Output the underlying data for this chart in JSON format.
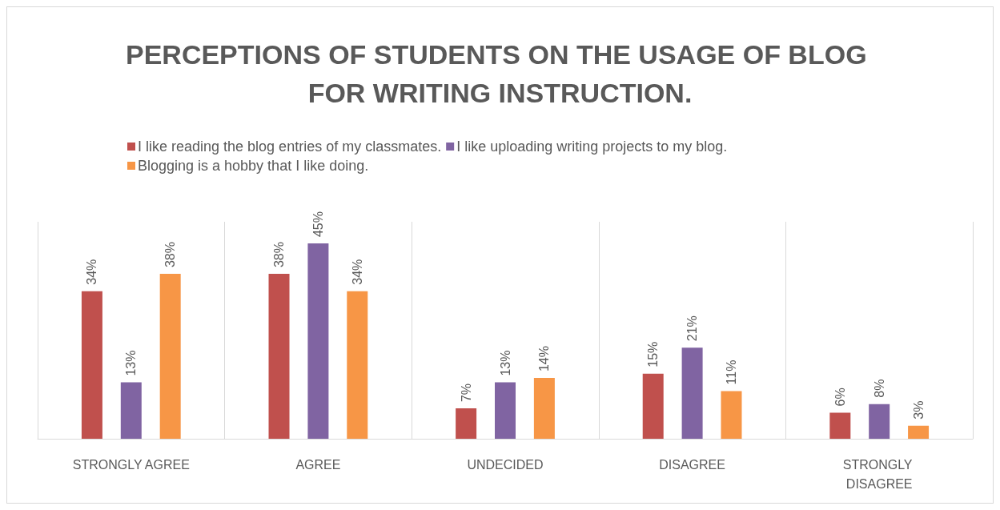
{
  "chart_data": {
    "type": "bar",
    "title": "PERCEPTIONS OF STUDENTS ON THE USAGE OF BLOG FOR WRITING INSTRUCTION.",
    "categories": [
      "STRONGLY AGREE",
      "AGREE",
      "UNDECIDED",
      "DISAGREE",
      "STRONGLY DISAGREE"
    ],
    "series": [
      {
        "name": "I like reading the blog entries of my classmates.",
        "color": "#c0504d",
        "values": [
          34,
          38,
          7,
          15,
          6
        ],
        "value_labels": [
          "34%",
          "38%",
          "7%",
          "15%",
          "6%"
        ]
      },
      {
        "name": "I like uploading writing projects to my blog.",
        "color": "#8064a2",
        "values": [
          13,
          45,
          13,
          21,
          8
        ],
        "value_labels": [
          "13%",
          "45%",
          "13%",
          "21%",
          "8%"
        ]
      },
      {
        "name": "Blogging is a hobby that I like doing.",
        "color": "#f79646",
        "values": [
          38,
          34,
          14,
          11,
          3
        ],
        "value_labels": [
          "38%",
          "34%",
          "14%",
          "11%",
          "3%"
        ]
      }
    ],
    "grid": "x",
    "legend": "top left"
  }
}
